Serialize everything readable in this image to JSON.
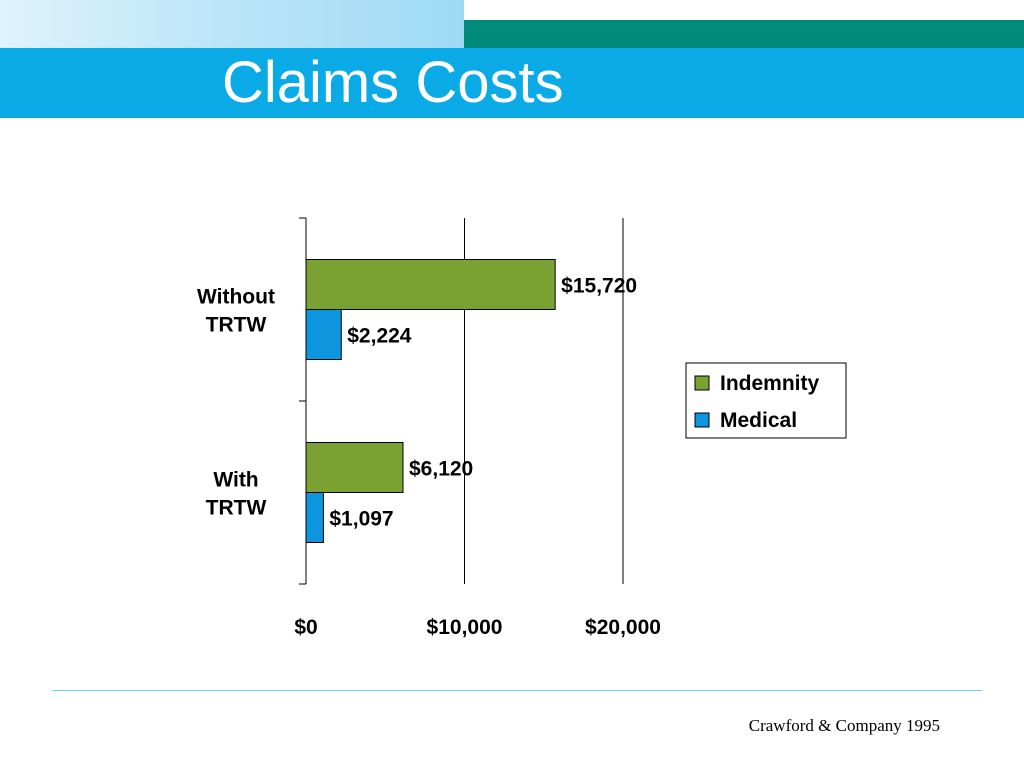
{
  "slide": {
    "title": "Claims Costs",
    "footer": "Crawford & Company 1995"
  },
  "chart_data": {
    "type": "bar",
    "orientation": "horizontal",
    "categories": [
      "Without TRTW",
      "With TRTW"
    ],
    "category_lines": [
      [
        "Without",
        "TRTW"
      ],
      [
        "With",
        "TRTW"
      ]
    ],
    "series": [
      {
        "name": "Indemnity",
        "values": [
          15720,
          6120
        ],
        "labels": [
          "$15,720",
          "$6,120"
        ],
        "color": "#7aa232"
      },
      {
        "name": "Medical",
        "values": [
          2224,
          1097
        ],
        "labels": [
          "$2,224",
          "$1,097"
        ],
        "color": "#0d96de"
      }
    ],
    "xlim": [
      0,
      20000
    ],
    "xticks": [
      0,
      10000,
      20000
    ],
    "xtick_labels": [
      "$0",
      "$10,000",
      "$20,000"
    ],
    "grid": "vertical",
    "legend": "right"
  }
}
